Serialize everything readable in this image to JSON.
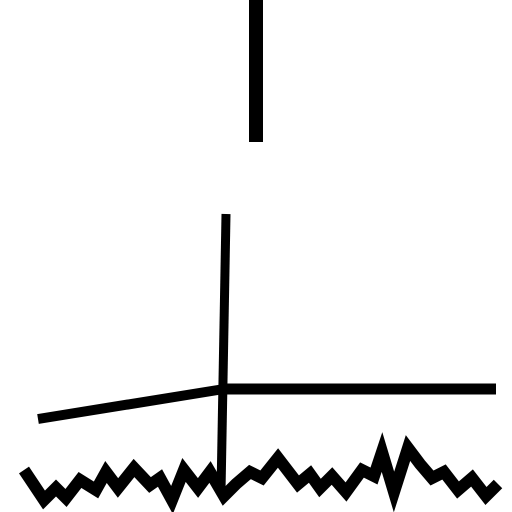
{
  "drawing": {
    "background_color": "#ffffff",
    "ink_color": "#000000",
    "elements": [
      "top-vertical-line",
      "center-vertical-line",
      "left-slanted-line",
      "right-horizontal-line",
      "jagged-ground-line"
    ]
  }
}
